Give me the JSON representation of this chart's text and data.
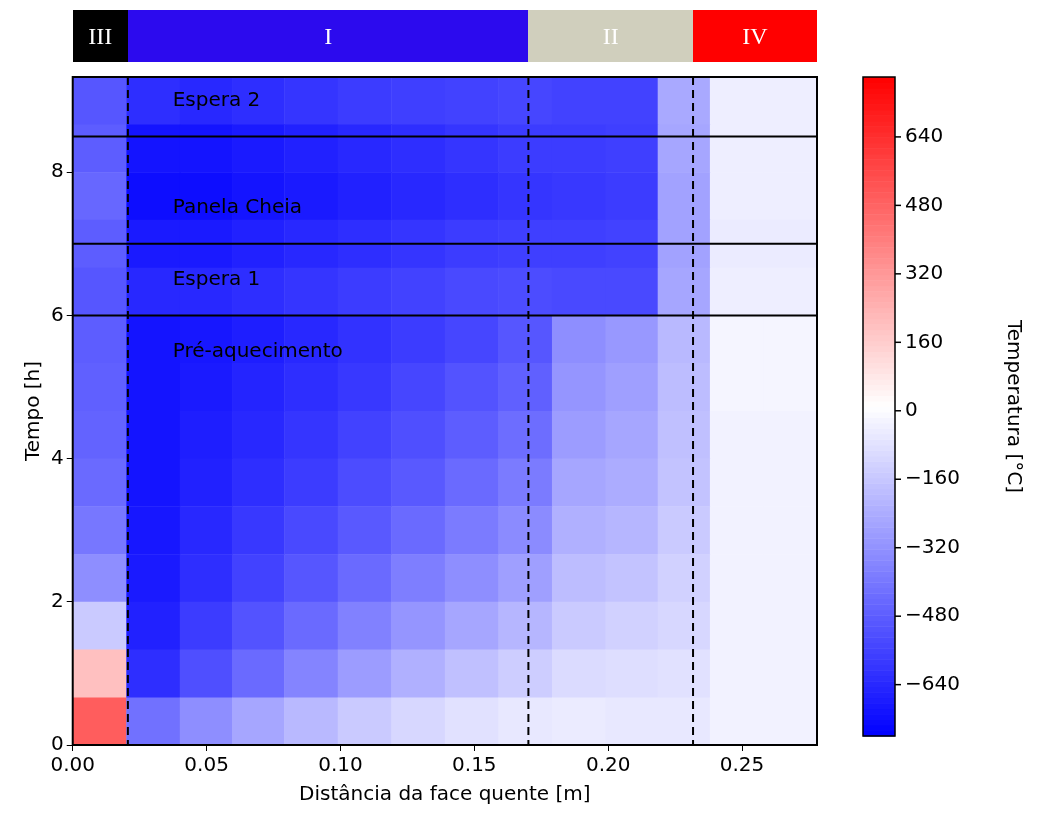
{
  "chart_data": [
    {
      "type": "other",
      "annotations": [
        "III",
        "I",
        "II",
        "IV"
      ]
    },
    {
      "type": "heatmap",
      "xlabel": "Distância da face quente [m]",
      "ylabel": "Tempo [h]",
      "clabel": "Temperatura [°C]",
      "xlim": [
        0,
        0.278
      ],
      "xticks": [
        {
          "value": 0,
          "label": "0.00"
        },
        {
          "value": 0.05,
          "label": "0.05"
        },
        {
          "value": 0.1,
          "label": "0.10"
        },
        {
          "value": 0.15,
          "label": "0.15"
        },
        {
          "value": 0.2,
          "label": "0.20"
        },
        {
          "value": 0.25,
          "label": "0.25"
        }
      ],
      "ylim": [
        0,
        9.33
      ],
      "yticks": [
        0,
        2,
        4,
        6,
        8
      ],
      "clim": [
        -760,
        780
      ],
      "cticks": [
        -640,
        -480,
        -320,
        -160,
        0,
        160,
        320,
        480,
        640
      ],
      "x": [
        0.01,
        0.03,
        0.05,
        0.069,
        0.089,
        0.109,
        0.129,
        0.149,
        0.169,
        0.189,
        0.209,
        0.228,
        0.248,
        0.268
      ],
      "y": [
        9.0,
        8.33,
        7.67,
        7.0,
        6.33,
        5.67,
        5.0,
        4.33,
        3.67,
        3.0,
        2.33,
        1.67,
        1.0,
        0.33
      ],
      "cells": [
        [
          -500,
          -620,
          -640,
          -620,
          -600,
          -580,
          -570,
          -560,
          -550,
          -560,
          -560,
          -250,
          -40,
          -40
        ],
        [
          -480,
          -700,
          -700,
          -680,
          -660,
          -640,
          -620,
          -600,
          -580,
          -580,
          -570,
          -260,
          -40,
          -40
        ],
        [
          -450,
          -720,
          -720,
          -700,
          -680,
          -660,
          -640,
          -620,
          -600,
          -590,
          -580,
          -270,
          -40,
          -40
        ],
        [
          -480,
          -680,
          -680,
          -660,
          -640,
          -620,
          -600,
          -580,
          -570,
          -570,
          -560,
          -270,
          -50,
          -50
        ],
        [
          -500,
          -640,
          -640,
          -620,
          -600,
          -580,
          -560,
          -540,
          -530,
          -540,
          -540,
          -260,
          -40,
          -40
        ],
        [
          -480,
          -700,
          -690,
          -670,
          -640,
          -610,
          -580,
          -550,
          -500,
          -330,
          -300,
          -200,
          -20,
          -20
        ],
        [
          -470,
          -700,
          -680,
          -650,
          -620,
          -590,
          -550,
          -510,
          -470,
          -310,
          -280,
          -190,
          -20,
          -20
        ],
        [
          -460,
          -700,
          -670,
          -640,
          -600,
          -560,
          -520,
          -480,
          -430,
          -290,
          -260,
          -180,
          -30,
          -30
        ],
        [
          -440,
          -700,
          -660,
          -620,
          -580,
          -530,
          -490,
          -440,
          -390,
          -260,
          -240,
          -170,
          -30,
          -30
        ],
        [
          -400,
          -690,
          -640,
          -590,
          -540,
          -490,
          -440,
          -390,
          -340,
          -230,
          -210,
          -150,
          -30,
          -30
        ],
        [
          -330,
          -680,
          -620,
          -560,
          -500,
          -440,
          -380,
          -330,
          -280,
          -190,
          -170,
          -130,
          -30,
          -30
        ],
        [
          -150,
          -660,
          -580,
          -510,
          -440,
          -370,
          -310,
          -260,
          -210,
          -150,
          -130,
          -110,
          -30,
          -30
        ],
        [
          200,
          -620,
          -520,
          -440,
          -360,
          -290,
          -230,
          -180,
          -140,
          -100,
          -90,
          -80,
          -30,
          -30
        ],
        [
          500,
          -420,
          -330,
          -260,
          -200,
          -150,
          -110,
          -80,
          -60,
          -50,
          -60,
          -60,
          -30,
          -30
        ]
      ],
      "ref_lines": [
        {
          "axis": "x",
          "value": 0.0206,
          "line_style": "dashed"
        },
        {
          "axis": "x",
          "value": 0.1702,
          "line_style": "dashed"
        },
        {
          "axis": "x",
          "value": 0.2317,
          "line_style": "dashed"
        },
        {
          "axis": "y",
          "value": 6,
          "label": "Espera 1"
        },
        {
          "axis": "y",
          "value": 7,
          "label": "Panela Cheia"
        },
        {
          "axis": "y",
          "value": 8.5,
          "label": "Espera 2"
        }
      ],
      "annotations": [
        "Pré-aquecimento"
      ]
    }
  ]
}
